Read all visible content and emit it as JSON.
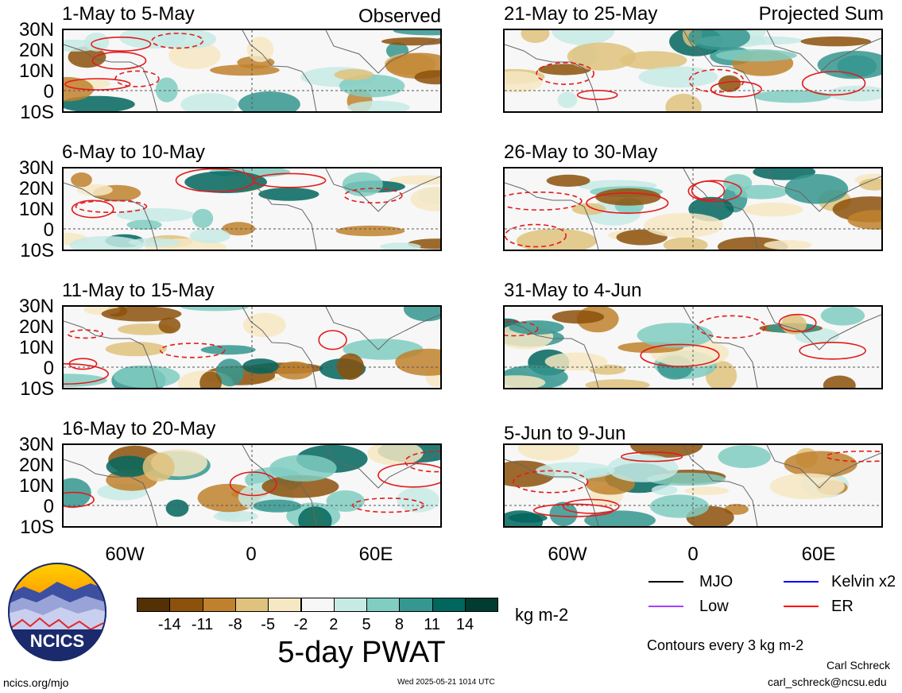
{
  "observed_label": "Observed",
  "projected_label": "Projected Sum",
  "lat_labels": [
    "30N",
    "20N",
    "10N",
    "0",
    "10S"
  ],
  "lon_labels": [
    "60W",
    "0",
    "60E"
  ],
  "panels_left": [
    {
      "title": "1-May to 5-May"
    },
    {
      "title": "6-May to 10-May"
    },
    {
      "title": "11-May to 15-May"
    },
    {
      "title": "16-May to 20-May"
    }
  ],
  "panels_right": [
    {
      "title": "21-May to 25-May"
    },
    {
      "title": "26-May to 30-May"
    },
    {
      "title": "31-May to 4-Jun"
    },
    {
      "title": "5-Jun to 9-Jun"
    }
  ],
  "colorbar": {
    "labels": [
      "-14",
      "-11",
      "-8",
      "-5",
      "-2",
      "2",
      "5",
      "8",
      "11",
      "14"
    ],
    "colors": [
      "#543005",
      "#8c510a",
      "#bf812d",
      "#dfc27d",
      "#f6e8c3",
      "#f7f7f7",
      "#c7eae5",
      "#80cdc1",
      "#35978f",
      "#01665e",
      "#003c30"
    ],
    "units": "kg m-2",
    "title": "5-day PWAT"
  },
  "legend": {
    "items": [
      {
        "label": "MJO",
        "color": "#000000"
      },
      {
        "label": "Kelvin x2",
        "color": "#0000ff"
      },
      {
        "label": "Low",
        "color": "#a040ff"
      },
      {
        "label": "ER",
        "color": "#ff0000"
      }
    ],
    "contour_note": "Contours every 3 kg m-2"
  },
  "logo_text": "NCICS",
  "footer": {
    "url": "ncics.org/mjo",
    "timestamp": "Wed 2025-05-21 1014 UTC",
    "author": "Carl Schreck",
    "email": "carl_schreck@ncsu.edu"
  }
}
